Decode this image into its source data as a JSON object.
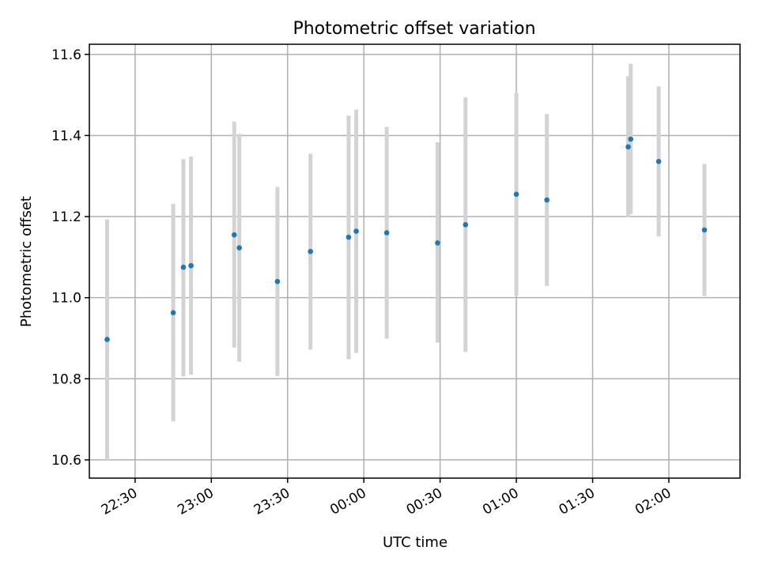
{
  "chart_data": {
    "type": "scatter",
    "title": "Photometric offset variation",
    "xlabel": "UTC time",
    "ylabel": "Photometric offset",
    "xlim": [
      "22:12",
      "02:28"
    ],
    "ylim": [
      10.555,
      11.625
    ],
    "grid": true,
    "point_color": "#1f77b4",
    "errorbar_color": "#d3d3d3",
    "x_ticks": [
      "22:30",
      "23:00",
      "23:30",
      "00:00",
      "00:30",
      "01:00",
      "01:30",
      "02:00"
    ],
    "y_ticks": [
      10.6,
      10.8,
      11.0,
      11.2,
      11.4,
      11.6
    ],
    "y_tick_labels": [
      "10.6",
      "10.8",
      "11.0",
      "11.2",
      "11.4",
      "11.6"
    ],
    "points": [
      {
        "x": "22:19",
        "y": 10.897,
        "y_low": 10.6,
        "y_high": 11.193
      },
      {
        "x": "22:45",
        "y": 10.963,
        "y_low": 10.695,
        "y_high": 11.231
      },
      {
        "x": "22:49",
        "y": 11.075,
        "y_low": 10.806,
        "y_high": 11.342
      },
      {
        "x": "22:52",
        "y": 11.079,
        "y_low": 10.81,
        "y_high": 11.348
      },
      {
        "x": "23:09",
        "y": 11.155,
        "y_low": 10.877,
        "y_high": 11.434
      },
      {
        "x": "23:11",
        "y": 11.123,
        "y_low": 10.842,
        "y_high": 11.404
      },
      {
        "x": "23:26",
        "y": 11.04,
        "y_low": 10.807,
        "y_high": 11.273
      },
      {
        "x": "23:39",
        "y": 11.114,
        "y_low": 10.872,
        "y_high": 11.355
      },
      {
        "x": "23:54",
        "y": 11.149,
        "y_low": 10.848,
        "y_high": 11.449
      },
      {
        "x": "23:57",
        "y": 11.164,
        "y_low": 10.864,
        "y_high": 11.464
      },
      {
        "x": "00:09",
        "y": 11.16,
        "y_low": 10.899,
        "y_high": 11.421
      },
      {
        "x": "00:29",
        "y": 11.135,
        "y_low": 10.889,
        "y_high": 11.383
      },
      {
        "x": "00:40",
        "y": 11.18,
        "y_low": 10.866,
        "y_high": 11.494
      },
      {
        "x": "01:00",
        "y": 11.255,
        "y_low": 11.005,
        "y_high": 11.505
      },
      {
        "x": "01:12",
        "y": 11.241,
        "y_low": 11.029,
        "y_high": 11.453
      },
      {
        "x": "01:44",
        "y": 11.372,
        "y_low": 11.198,
        "y_high": 11.546
      },
      {
        "x": "01:45",
        "y": 11.391,
        "y_low": 11.206,
        "y_high": 11.577
      },
      {
        "x": "01:56",
        "y": 11.336,
        "y_low": 11.151,
        "y_high": 11.521
      },
      {
        "x": "02:14",
        "y": 11.167,
        "y_low": 11.004,
        "y_high": 11.33
      }
    ]
  }
}
